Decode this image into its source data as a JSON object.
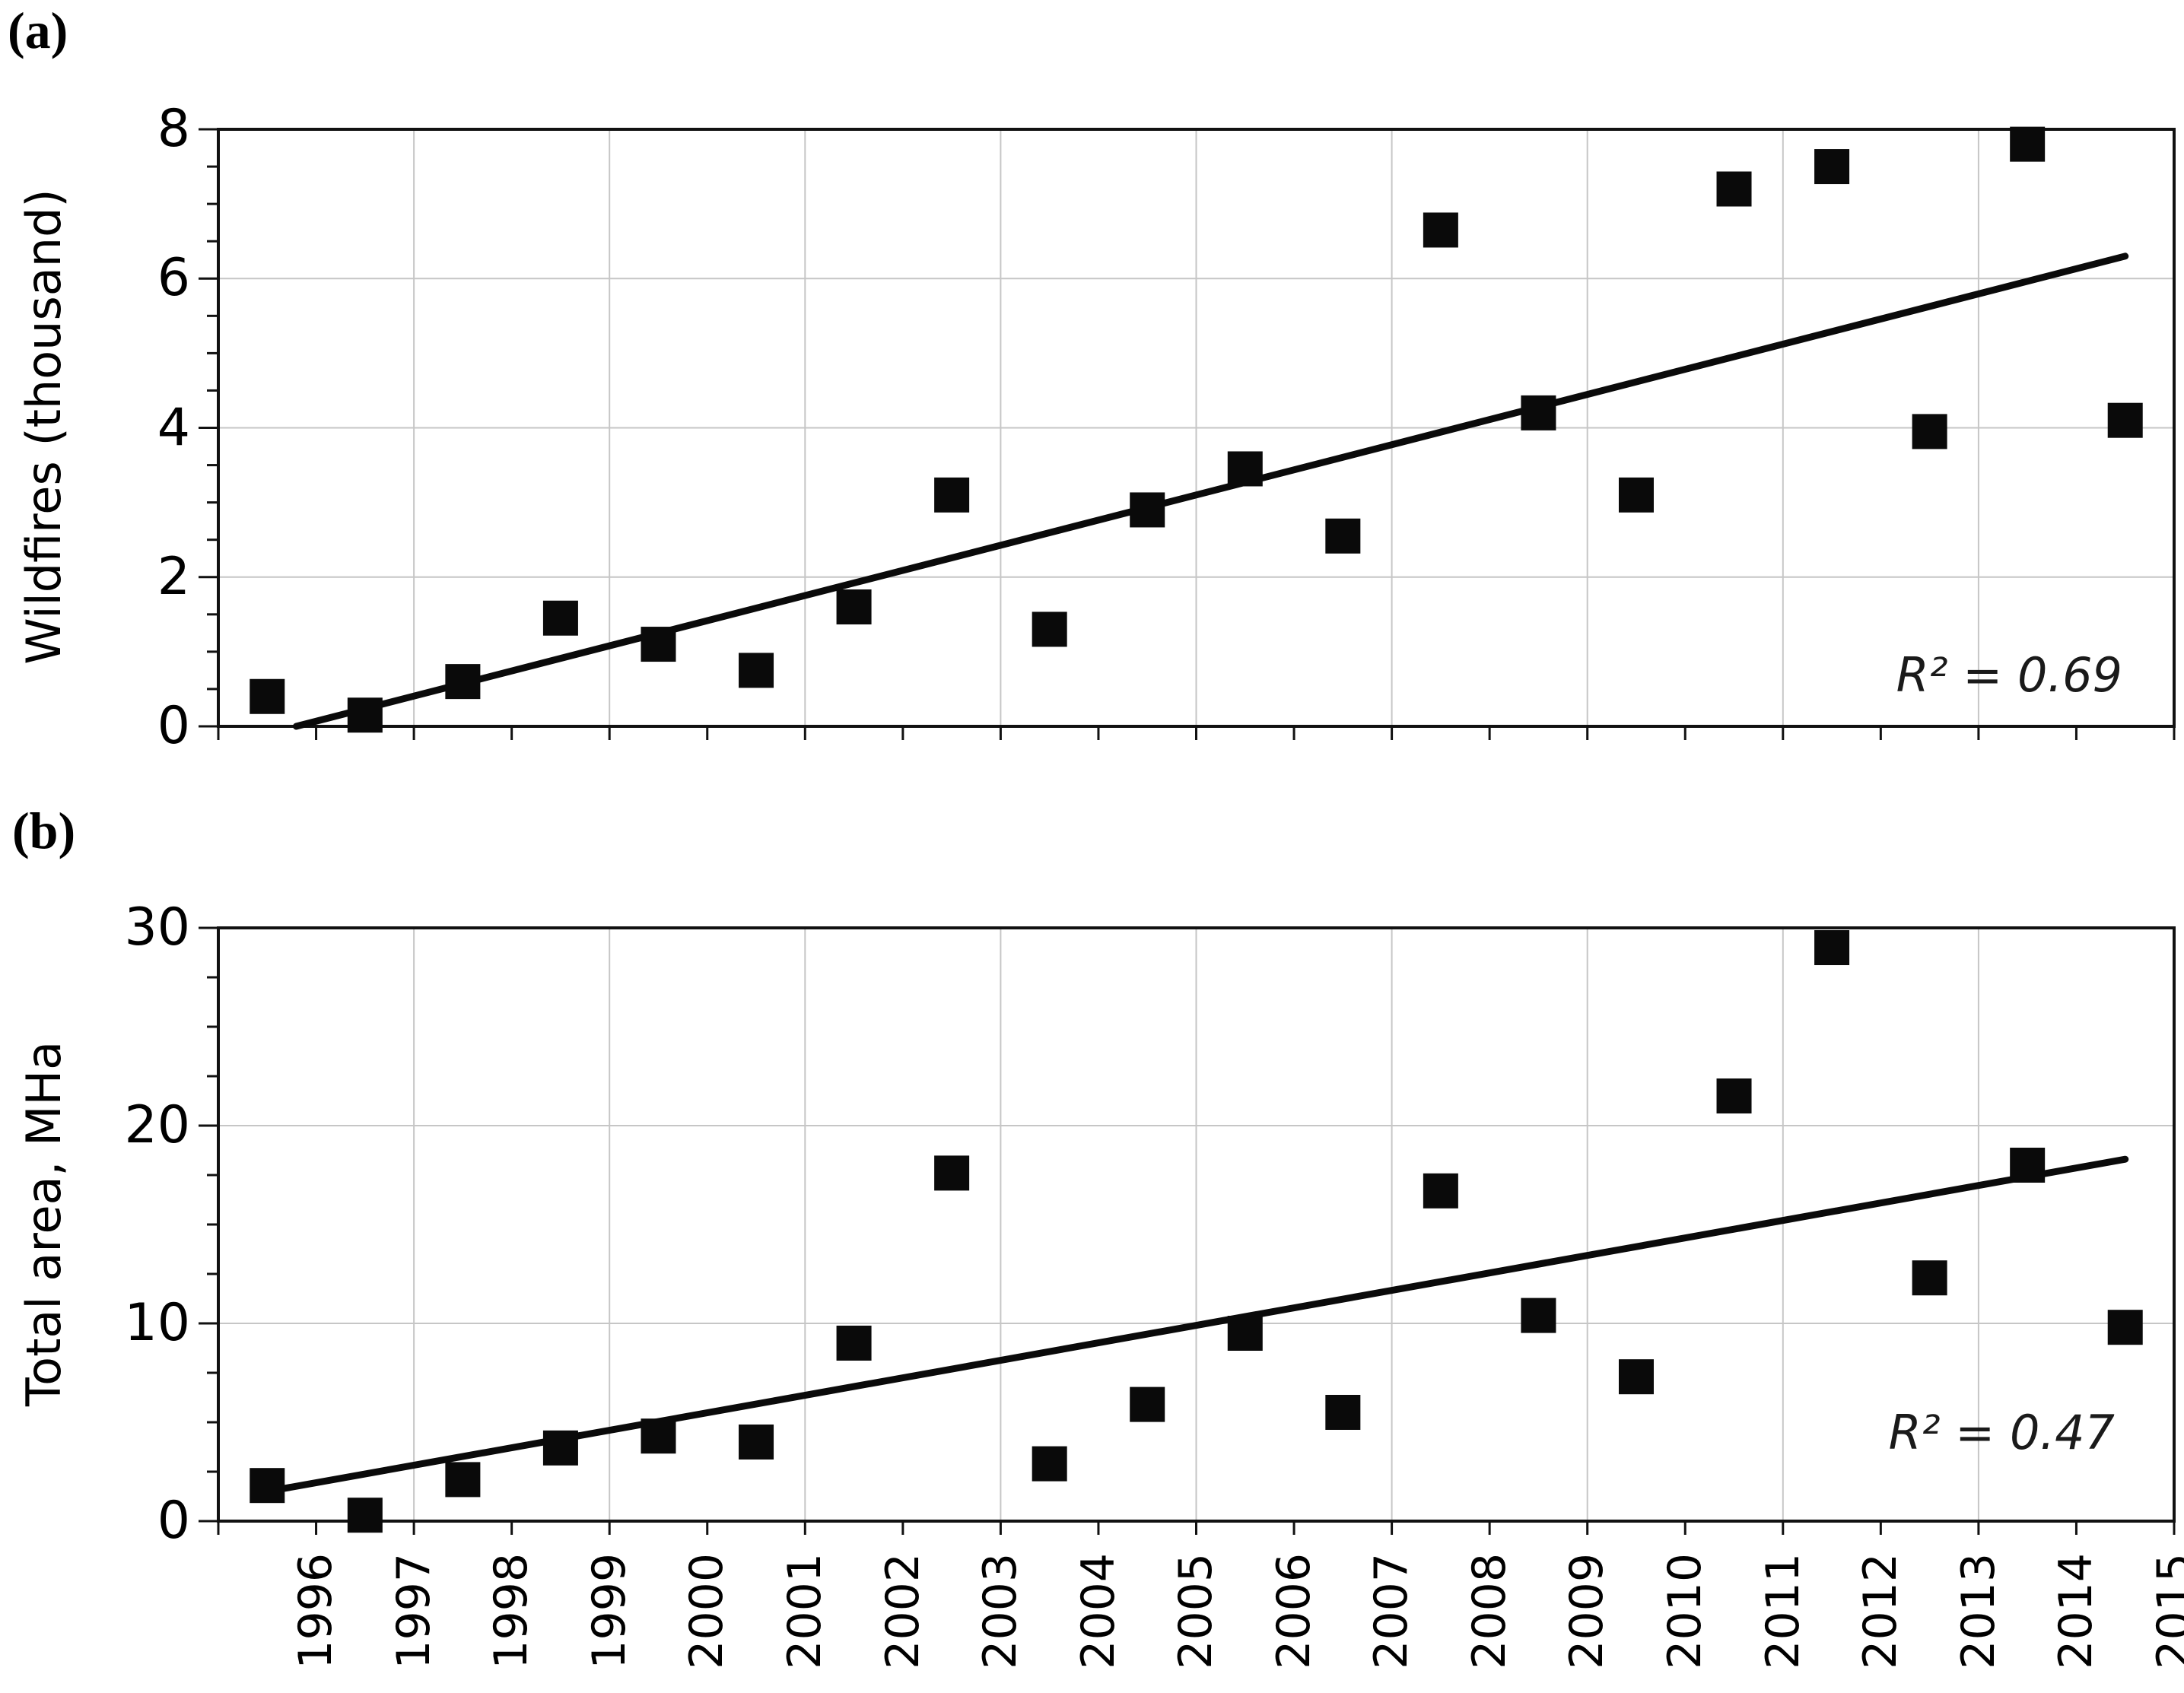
{
  "figure": {
    "background_color": "#ffffff",
    "axis_color": "#111111",
    "gridline_color": "#c6c6c6",
    "marker_color": "#0a0a0a",
    "trendline_color": "#0a0a0a"
  },
  "chart_data": [
    {
      "type": "scatter",
      "panel_label": "(a)",
      "title": "",
      "xlabel": "",
      "ylabel": "Wildfires (thousand)",
      "annotation": "R² = 0.69",
      "r_squared": 0.69,
      "categories": [
        "1996",
        "1997",
        "1998",
        "1999",
        "2000",
        "2001",
        "2002",
        "2003",
        "2004",
        "2005",
        "2006",
        "2007",
        "2008",
        "2009",
        "2010",
        "2011",
        "2012",
        "2013",
        "2014",
        "2015"
      ],
      "values": [
        0.4,
        0.15,
        0.6,
        1.45,
        1.1,
        0.75,
        1.6,
        3.1,
        1.3,
        2.9,
        3.45,
        2.55,
        6.65,
        4.2,
        3.1,
        7.2,
        7.5,
        3.95,
        7.8,
        4.1
      ],
      "ylim": [
        0,
        8
      ],
      "yticks_major": [
        0,
        2,
        4,
        6,
        8
      ],
      "ytick_minor_step": 0.5,
      "grid": "major",
      "x_gridline_every_years": 2,
      "legend": "none",
      "marker": "black-square",
      "trendline": {
        "style": "solid-black",
        "start_year_value": -0.1,
        "end_year_value": 6.3,
        "clipped_at_zero": true
      }
    },
    {
      "type": "scatter",
      "panel_label": "(b)",
      "title": "",
      "xlabel": "",
      "ylabel": "Total area, MHa",
      "annotation": "R² = 0.47",
      "r_squared": 0.47,
      "categories": [
        "1996",
        "1997",
        "1998",
        "1999",
        "2000",
        "2001",
        "2002",
        "2003",
        "2004",
        "2005",
        "2006",
        "2007",
        "2008",
        "2009",
        "2010",
        "2011",
        "2012",
        "2013",
        "2014",
        "2015"
      ],
      "values": [
        1.8,
        0.3,
        2.1,
        3.7,
        4.3,
        4.0,
        9.0,
        17.6,
        2.9,
        5.9,
        9.5,
        5.5,
        16.7,
        10.4,
        7.3,
        21.5,
        29.0,
        12.3,
        18.0,
        9.8
      ],
      "ylim": [
        0,
        30
      ],
      "yticks_major": [
        0,
        10,
        20,
        30
      ],
      "ytick_minor_step": 2.5,
      "grid": "major",
      "x_gridline_every_years": 2,
      "legend": "none",
      "marker": "black-square",
      "trendline": {
        "style": "solid-black",
        "start_year_value": 1.5,
        "end_year_value": 18.3,
        "clipped_at_zero": false
      }
    }
  ]
}
